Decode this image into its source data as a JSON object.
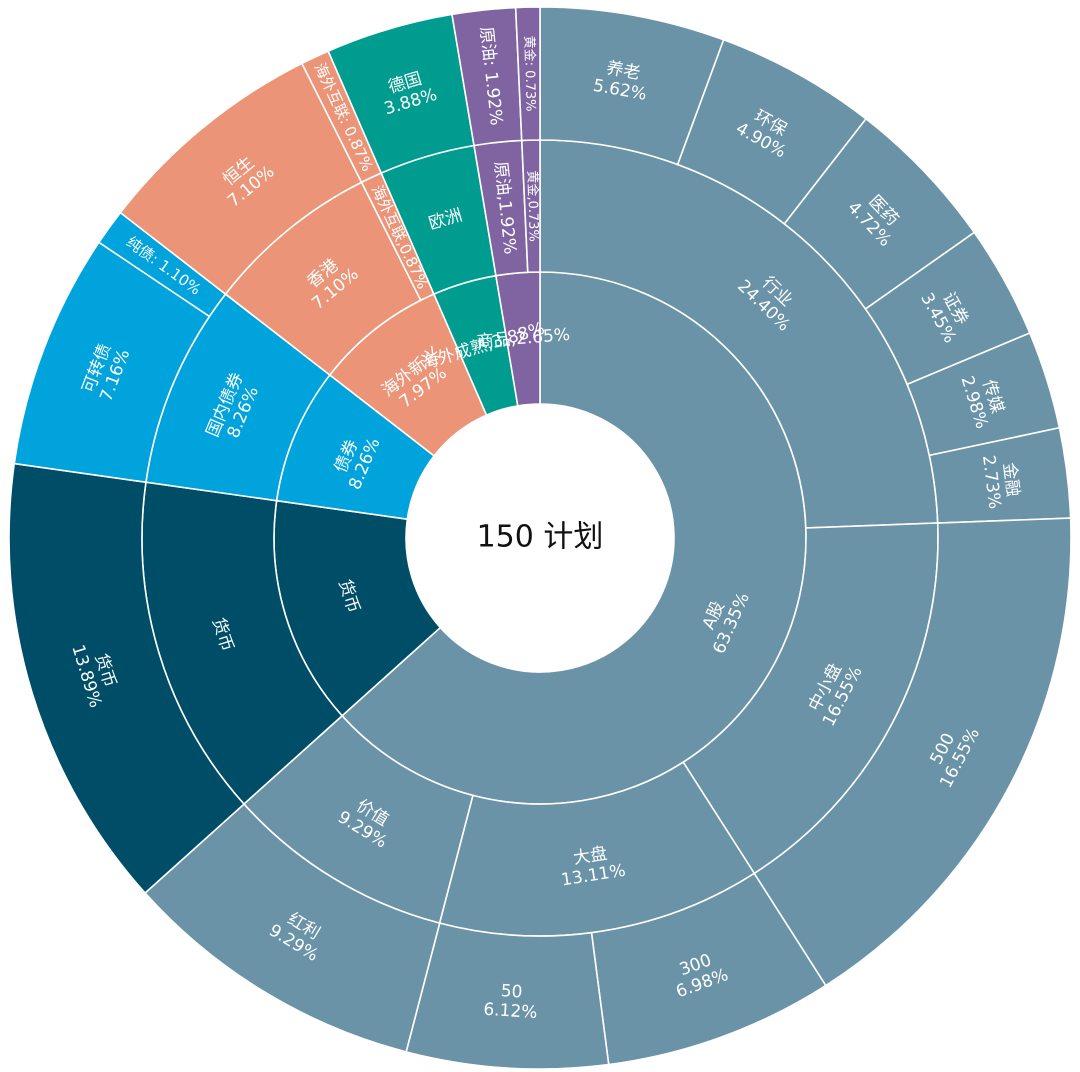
{
  "chart_data": {
    "type": "sunburst",
    "title": "150 计划",
    "colors": {
      "A股": "#6a93a8",
      "货币": "#004d68",
      "债券": "#00a3dc",
      "海外新兴": "#eb9478",
      "海外成熟": "#009c8f",
      "商品": "#8064a2"
    },
    "rings": [
      [
        {
          "name": "A股",
          "value": 63.35,
          "text": [
            "A股",
            "63.35%"
          ]
        },
        {
          "name": "货币",
          "value": 13.89,
          "text": [
            "货币"
          ]
        },
        {
          "name": "债券",
          "value": 8.26,
          "text": [
            "债券",
            "8.26%"
          ]
        },
        {
          "name": "海外新兴",
          "value": 7.97,
          "text": [
            "海外新兴",
            "7.97%"
          ]
        },
        {
          "name": "海外成熟",
          "value": 3.88,
          "text": [
            "海外成熟,3.88%"
          ]
        },
        {
          "name": "商品",
          "value": 2.65,
          "text": [
            "商品,2.65%"
          ]
        }
      ],
      [
        {
          "name": "行业",
          "group": "A股",
          "value": 24.4,
          "text": [
            "行业",
            "24.40%"
          ]
        },
        {
          "name": "中小盘",
          "group": "A股",
          "value": 16.55,
          "text": [
            "中小盘",
            "16.55%"
          ]
        },
        {
          "name": "大盘",
          "group": "A股",
          "value": 13.11,
          "text": [
            "大盘",
            "13.11%"
          ]
        },
        {
          "name": "价值",
          "group": "A股",
          "value": 9.29,
          "text": [
            "价值",
            "9.29%"
          ]
        },
        {
          "name": "货币",
          "group": "货币",
          "value": 13.89,
          "text": [
            "货币"
          ]
        },
        {
          "name": "国内债券",
          "group": "债券",
          "value": 8.26,
          "text": [
            "国内债券",
            "8.26%"
          ]
        },
        {
          "name": "香港",
          "group": "海外新兴",
          "value": 7.1,
          "text": [
            "香港",
            "7.10%"
          ]
        },
        {
          "name": "海外互联",
          "group": "海外新兴",
          "value": 0.87,
          "text": [
            "海外互联,0.87%"
          ]
        },
        {
          "name": "欧洲",
          "group": "海外成熟",
          "value": 3.88,
          "text": [
            "欧洲"
          ]
        },
        {
          "name": "原油",
          "group": "商品",
          "value": 1.92,
          "text": [
            "原油,1.92%"
          ]
        },
        {
          "name": "黄金",
          "group": "商品",
          "value": 0.73,
          "text": [
            "黄金,0.73%"
          ]
        }
      ],
      [
        {
          "name": "养老",
          "group": "A股",
          "value": 5.62,
          "text": [
            "养老",
            "5.62%"
          ]
        },
        {
          "name": "环保",
          "group": "A股",
          "value": 4.9,
          "text": [
            "环保",
            "4.90%"
          ]
        },
        {
          "name": "医药",
          "group": "A股",
          "value": 4.72,
          "text": [
            "医药",
            "4.72%"
          ]
        },
        {
          "name": "证券",
          "group": "A股",
          "value": 3.45,
          "text": [
            "证券",
            "3.45%"
          ]
        },
        {
          "name": "传媒",
          "group": "A股",
          "value": 2.98,
          "text": [
            "传媒",
            "2.98%"
          ]
        },
        {
          "name": "金融",
          "group": "A股",
          "value": 2.73,
          "text": [
            "金融",
            "2.73%"
          ]
        },
        {
          "name": "500",
          "group": "A股",
          "value": 16.55,
          "text": [
            "500",
            "16.55%"
          ]
        },
        {
          "name": "300",
          "group": "A股",
          "value": 6.98,
          "text": [
            "300",
            "6.98%"
          ]
        },
        {
          "name": "50",
          "group": "A股",
          "value": 6.12,
          "text": [
            "50",
            "6.12%"
          ]
        },
        {
          "name": "红利",
          "group": "A股",
          "value": 9.29,
          "text": [
            "红利",
            "9.29%"
          ]
        },
        {
          "name": "货币",
          "group": "货币",
          "value": 13.89,
          "text": [
            "货币",
            "13.89%"
          ]
        },
        {
          "name": "可转债",
          "group": "债券",
          "value": 7.16,
          "text": [
            "可转债",
            "7.16%"
          ]
        },
        {
          "name": "纯债",
          "group": "债券",
          "value": 1.1,
          "text": [
            "纯债: 1.10%"
          ]
        },
        {
          "name": "恒生",
          "group": "海外新兴",
          "value": 7.1,
          "text": [
            "恒生",
            "7.10%"
          ]
        },
        {
          "name": "海外互联",
          "group": "海外新兴",
          "value": 0.87,
          "text": [
            "海外互联: 0.87%"
          ]
        },
        {
          "name": "德国",
          "group": "海外成熟",
          "value": 3.88,
          "text": [
            "德国",
            "3.88%"
          ]
        },
        {
          "name": "原油",
          "group": "商品",
          "value": 1.92,
          "text": [
            "原油: 1.92%"
          ]
        },
        {
          "name": "黄金",
          "group": "商品",
          "value": 0.73,
          "text": [
            "黄金: 0.73%"
          ]
        }
      ]
    ]
  }
}
